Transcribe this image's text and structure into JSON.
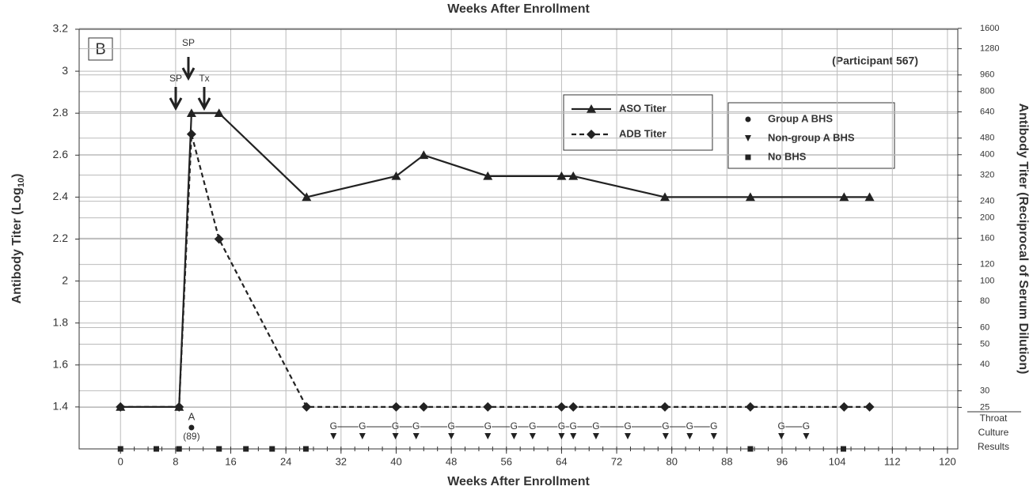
{
  "chart_data": {
    "type": "line",
    "title": "Weeks After Enrollment",
    "xlabel": "Weeks After Enrollment",
    "ylabel": "Antibody Titer (Log",
    "ylabel_sub": "10",
    "ylabel_end": ")",
    "y2label": "Antibody Titer (Reciprocal of Serum Dilution)",
    "panel_label": "B",
    "participant": "(Participant 567)",
    "arrows": [
      "SP",
      "SP",
      "Tx"
    ],
    "xlim": [
      -6,
      121.5
    ],
    "xticks": [
      0,
      8,
      16,
      24,
      32,
      40,
      48,
      56,
      64,
      72,
      80,
      88,
      96,
      104,
      112,
      120
    ],
    "ylim": [
      1.2,
      3.2
    ],
    "yticks": [
      1.4,
      1.6,
      1.8,
      2,
      2.2,
      2.4,
      2.6,
      2.8,
      3,
      3.2
    ],
    "y2log": true,
    "y2lim": [
      15.85,
      1584.89
    ],
    "y2ticks": [
      25,
      30,
      40,
      50,
      60,
      80,
      100,
      120,
      160,
      200,
      240,
      320,
      400,
      480,
      640,
      800,
      960,
      1280,
      1600
    ],
    "grid": true,
    "series": [
      {
        "name": "ASO Titer",
        "color": "#222222",
        "marker": "triangle",
        "dash": false,
        "x": [
          0,
          8.5,
          10.3,
          14.3,
          27,
          40,
          44,
          53.3,
          64,
          65.7,
          79,
          91.4,
          105,
          108.7
        ],
        "values": [
          1.4,
          1.4,
          2.8,
          2.8,
          2.4,
          2.5,
          2.6,
          2.5,
          2.5,
          2.5,
          2.4,
          2.4,
          2.4,
          2.4
        ]
      },
      {
        "name": "ADB Titer",
        "color": "#222222",
        "marker": "diamond",
        "dash": true,
        "x": [
          0,
          8.5,
          10.3,
          14.3,
          27,
          40,
          44,
          53.3,
          64,
          65.7,
          79,
          91.4,
          105,
          108.7
        ],
        "values": [
          1.4,
          1.4,
          2.7,
          2.2,
          1.4,
          1.4,
          1.4,
          1.4,
          1.4,
          1.4,
          1.4,
          1.4,
          1.4,
          1.4
        ]
      }
    ],
    "culture": {
      "label": [
        "Throat",
        "Culture",
        "Results"
      ],
      "g_label": "G",
      "group_a_label": "A",
      "group_a_count": "(89)",
      "groups": [
        {
          "name": "Group A BHS",
          "marker": "circle",
          "x": [
            10.3
          ]
        },
        {
          "name": "Non-group A BHS",
          "marker": "down-triangle",
          "x": [
            30.9,
            35.1,
            39.9,
            42.9,
            48,
            53.3,
            57.1,
            59.8,
            64,
            65.7,
            69,
            73.6,
            79.1,
            82.6,
            86.1,
            95.9,
            99.5
          ]
        },
        {
          "name": "No BHS",
          "marker": "square",
          "x": [
            0,
            5.2,
            8.5,
            14.3,
            18.2,
            22,
            26.9,
            91.4,
            104.9
          ]
        }
      ]
    }
  }
}
